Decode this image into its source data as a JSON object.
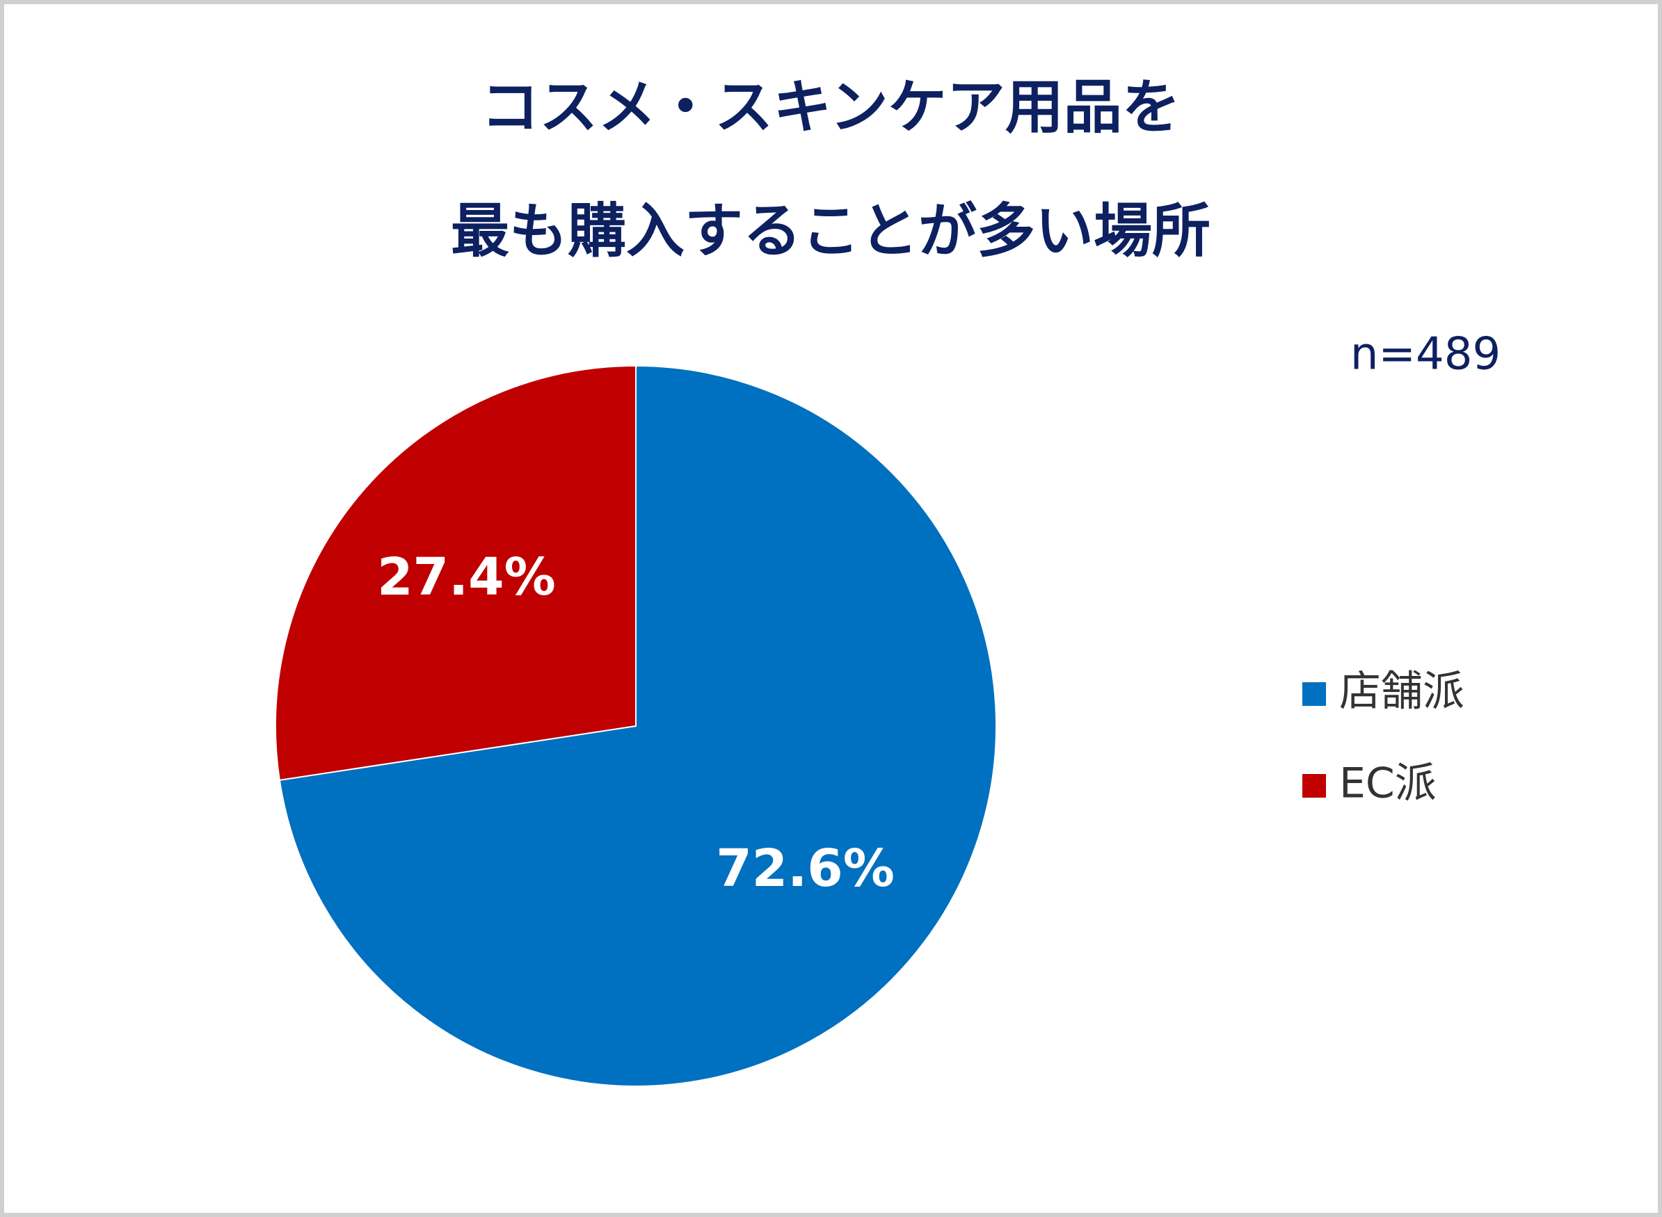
{
  "chart_data": {
    "type": "pie",
    "title": [
      "コスメ・スキンケア用品を",
      "最も購入することが多い場所"
    ],
    "annotation": "n=489",
    "categories": [
      "店舗派",
      "EC派"
    ],
    "values": [
      72.6,
      27.4
    ],
    "value_labels": [
      "72.6%",
      "27.4%"
    ],
    "colors": [
      "#0070c0",
      "#c00000"
    ],
    "legend": "right"
  }
}
